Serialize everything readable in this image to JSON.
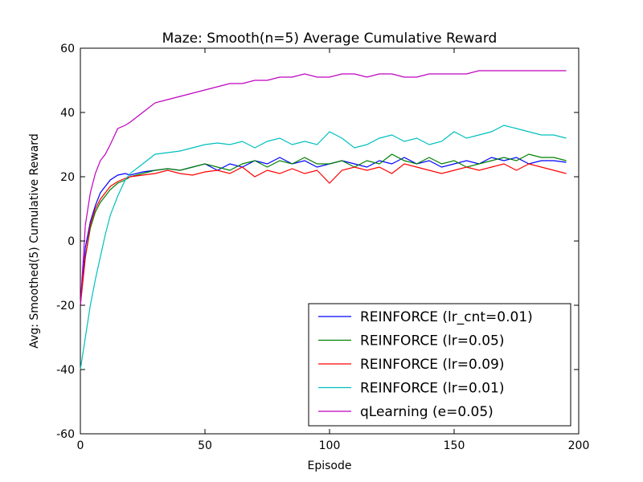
{
  "chart_data": {
    "type": "line",
    "title": "Maze: Smooth(n=5) Average Cumulative Reward",
    "xlabel": "Episode",
    "ylabel": "Avg: Smoothed(5) Cumulative Reward",
    "xlim": [
      0,
      200
    ],
    "ylim": [
      -60,
      60
    ],
    "xticks": [
      "0",
      "50",
      "100",
      "150",
      "200"
    ],
    "yticks": [
      "-60",
      "-40",
      "-20",
      "0",
      "20",
      "40",
      "60"
    ],
    "grid": false,
    "legend_position": "lower-right",
    "x": [
      0,
      2,
      4,
      6,
      8,
      10,
      12,
      15,
      18,
      20,
      25,
      30,
      35,
      40,
      45,
      50,
      55,
      60,
      65,
      70,
      75,
      80,
      85,
      90,
      95,
      100,
      105,
      110,
      115,
      120,
      125,
      130,
      135,
      140,
      145,
      150,
      155,
      160,
      165,
      170,
      175,
      180,
      185,
      190,
      195
    ],
    "series": [
      {
        "name": "REINFORCE (lr_cnt=0.01)",
        "color": "#0000ff",
        "values": [
          -20,
          -2,
          6,
          11,
          15,
          17,
          19,
          20.5,
          21,
          20.5,
          21.5,
          22,
          22.5,
          22,
          23,
          24,
          22,
          24,
          23,
          25,
          24,
          26,
          24,
          25,
          23,
          24,
          25,
          24,
          23,
          25,
          24,
          26,
          24,
          25,
          23,
          24,
          25,
          24,
          26,
          25,
          26,
          24,
          25,
          25,
          24.5
        ]
      },
      {
        "name": "REINFORCE (lr=0.05)",
        "color": "#008000",
        "values": [
          -20,
          -5,
          4,
          9,
          12,
          14,
          16,
          18,
          19,
          20,
          21,
          22,
          22.5,
          22,
          23,
          24,
          23,
          22,
          24,
          25,
          23,
          25,
          24,
          26,
          24,
          24,
          25,
          23,
          25,
          24,
          27,
          25,
          24,
          26,
          24,
          25,
          23,
          24,
          25,
          26,
          25,
          27,
          26,
          26,
          25
        ]
      },
      {
        "name": "REINFORCE (lr=0.09)",
        "color": "#ff0000",
        "values": [
          -20,
          -5,
          5,
          10,
          13,
          15,
          17,
          18.5,
          19.5,
          20,
          20.5,
          21,
          22,
          21,
          20.5,
          21.5,
          22,
          21,
          23,
          20,
          22,
          21,
          22.5,
          21,
          22,
          18,
          22,
          23,
          22,
          23,
          21,
          24,
          23,
          22,
          21,
          22,
          23,
          22,
          23,
          24,
          22,
          24,
          23,
          22,
          21
        ]
      },
      {
        "name": "REINFORCE (lr=0.01)",
        "color": "#00bfbf",
        "values": [
          -40,
          -30,
          -20,
          -12,
          -5,
          2,
          8,
          14,
          19,
          21,
          24,
          27,
          27.5,
          28,
          29,
          30,
          30.5,
          30,
          31,
          29,
          31,
          32,
          30,
          31,
          30,
          34,
          32,
          29,
          30,
          32,
          33,
          31,
          32,
          30,
          31,
          34,
          32,
          33,
          34,
          36,
          35,
          34,
          33,
          33,
          32
        ]
      },
      {
        "name": "qLearning (e=0.05)",
        "color": "#bf00bf",
        "values": [
          -20,
          5,
          15,
          21,
          25,
          27,
          30,
          35,
          36,
          37,
          40,
          43,
          44,
          45,
          46,
          47,
          48,
          49,
          49,
          50,
          50,
          51,
          51,
          52,
          51,
          51,
          52,
          52,
          51,
          52,
          52,
          51,
          51,
          52,
          52,
          52,
          52,
          53,
          53,
          53,
          53,
          53,
          53,
          53,
          53
        ]
      }
    ]
  }
}
